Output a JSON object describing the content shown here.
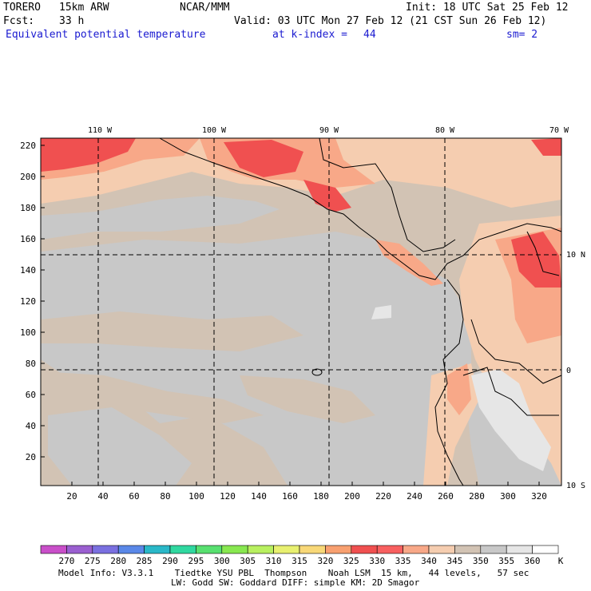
{
  "header": {
    "model": "TORERO",
    "resolution": "15km ARW",
    "org": "NCAR/MMM",
    "init": "Init: 18 UTC Sat 25 Feb 12",
    "fcst_label": "Fcst:",
    "fcst_value": "33 h",
    "valid": "Valid: 03 UTC Mon 27 Feb 12 (21 CST Sun 26 Feb 12)",
    "field": "Equivalent potential temperature",
    "level": "at k-index =",
    "level_value": "44",
    "smooth": "sm= 2"
  },
  "map": {
    "x_ticks": [
      "20",
      "40",
      "60",
      "80",
      "100",
      "120",
      "140",
      "160",
      "180",
      "200",
      "220",
      "240",
      "260",
      "280",
      "300",
      "320"
    ],
    "y_ticks": [
      "20",
      "40",
      "60",
      "80",
      "100",
      "120",
      "140",
      "160",
      "180",
      "200",
      "220"
    ],
    "lon_labels": [
      "110 W",
      "100 W",
      "90 W",
      "80 W",
      "70 W"
    ],
    "lat_labels": [
      "10 N",
      "0",
      "10 S"
    ]
  },
  "colorbar": {
    "values": [
      "270",
      "275",
      "280",
      "285",
      "290",
      "295",
      "300",
      "305",
      "310",
      "315",
      "320",
      "325",
      "330",
      "335",
      "340",
      "345",
      "350",
      "355",
      "360"
    ],
    "unit": "K",
    "colors": [
      "#c94fc9",
      "#9a5fd0",
      "#7a70e0",
      "#5a88e8",
      "#2ab8c8",
      "#30d8a0",
      "#58e070",
      "#88e850",
      "#b8f060",
      "#e8f070",
      "#f8d878",
      "#f8a070",
      "#f05050",
      "#f86060",
      "#f8a888",
      "#f5cdb0",
      "#d2c3b4",
      "#c8c8c8",
      "#e6e6e6",
      "#ffffff"
    ]
  },
  "footer": {
    "line1": "Model Info: V3.3.1    Tiedtke YSU PBL  Thompson    Noah LSM  15 km,   44 levels,   57 sec",
    "line2": "LW: Godd SW: Goddard DIFF: simple KM: 2D Smagor"
  }
}
